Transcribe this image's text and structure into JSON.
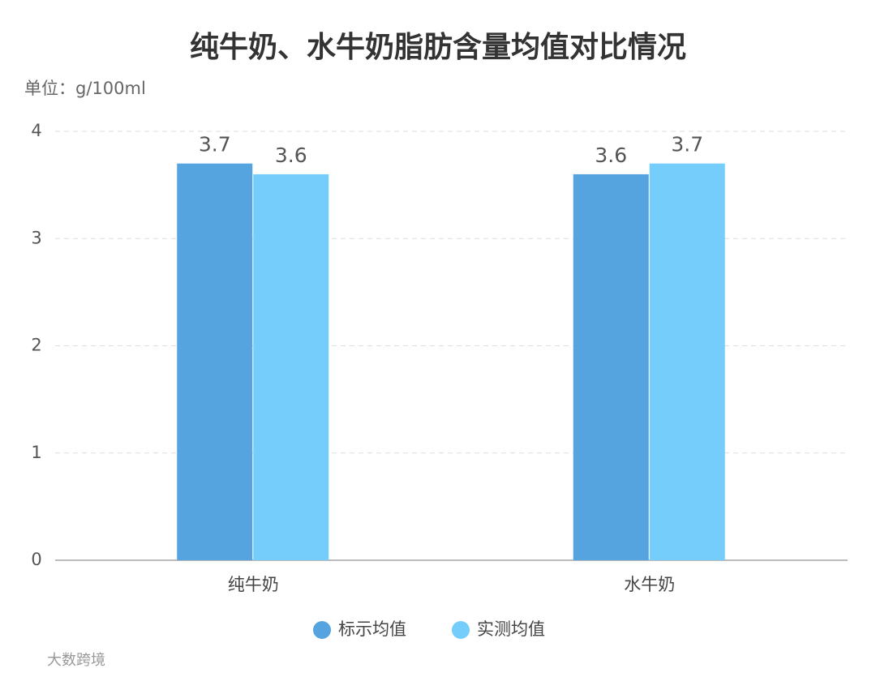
{
  "chart_data": {
    "type": "bar",
    "title": "纯牛奶、水牛奶脂肪含量均值对比情况",
    "unit_label": "单位：g/100ml",
    "categories": [
      "纯牛奶",
      "水牛奶"
    ],
    "series": [
      {
        "name": "标示均值",
        "color": "#55a4df",
        "values": [
          3.7,
          3.6
        ]
      },
      {
        "name": "实测均值",
        "color": "#74cdfb",
        "values": [
          3.6,
          3.7
        ]
      }
    ],
    "ylim": [
      0,
      4
    ],
    "yticks": [
      0,
      1,
      2,
      3,
      4
    ],
    "grid": true,
    "legend": "bottom",
    "footer": "大数跨境"
  }
}
